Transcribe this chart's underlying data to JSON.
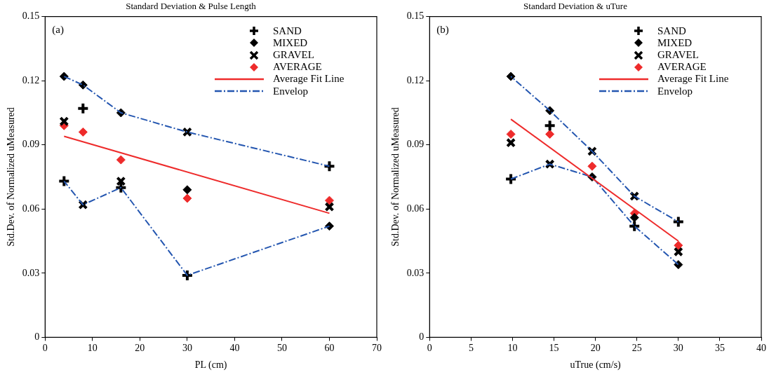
{
  "chart_data": [
    {
      "type": "scatter",
      "title": "Standard Deviation & Pulse Length",
      "xlabel": "PL (cm)",
      "ylabel": "Std.Dev. of Normalized uMeasured",
      "annotations": [
        "(a)"
      ],
      "xlim": [
        0,
        70
      ],
      "xticks": [
        0,
        10,
        20,
        30,
        40,
        50,
        60,
        70
      ],
      "ylim": [
        0,
        0.15
      ],
      "yticks": [
        0,
        0.03,
        0.06,
        0.09,
        0.12,
        0.15
      ],
      "grid": false,
      "legend": "top right",
      "series": [
        {
          "name": "SAND",
          "color": "#000000",
          "marker": "plus",
          "x": [
            4,
            8,
            16,
            30,
            60
          ],
          "values": [
            0.073,
            0.107,
            0.07,
            0.029,
            0.08
          ]
        },
        {
          "name": "MIXED",
          "color": "#000000",
          "marker": "diamond",
          "x": [
            4,
            8,
            16,
            30,
            60
          ],
          "values": [
            0.122,
            0.118,
            0.105,
            0.069,
            0.052
          ]
        },
        {
          "name": "GRAVEL",
          "color": "#000000",
          "marker": "cross",
          "x": [
            4,
            8,
            16,
            30,
            60
          ],
          "values": [
            0.101,
            0.062,
            0.073,
            0.096,
            0.061
          ]
        },
        {
          "name": "AVERAGE",
          "color": "#ee2b2b",
          "marker": "diamond",
          "x": [
            4,
            8,
            16,
            30,
            60
          ],
          "values": [
            0.099,
            0.096,
            0.083,
            0.065,
            0.064
          ]
        },
        {
          "name": "Average Fit Line",
          "type": "line",
          "color": "#ee2b2b",
          "marker": "none",
          "line_style": "solid",
          "x": [
            4,
            60
          ],
          "values": [
            0.094,
            0.058
          ]
        },
        {
          "name": "Envelop",
          "type": "line",
          "color": "#2456b0",
          "marker": "none",
          "line_style": "dashed",
          "x": [
            4,
            8,
            16,
            30,
            60
          ],
          "values": [
            0.122,
            0.118,
            0.105,
            0.096,
            0.08
          ]
        },
        {
          "type": "line",
          "color": "#2456b0",
          "marker": "none",
          "line_style": "dashed",
          "x": [
            4,
            8,
            16,
            30,
            60
          ],
          "values": [
            0.073,
            0.062,
            0.07,
            0.029,
            0.052
          ]
        }
      ]
    },
    {
      "type": "scatter",
      "title": "Standard Deviation & uTure",
      "xlabel": "uTrue (cm/s)",
      "ylabel": "Std.Dev. of Normalized uMeasured",
      "annotations": [
        "(b)"
      ],
      "xlim": [
        0,
        40
      ],
      "xticks": [
        0,
        5,
        10,
        15,
        20,
        25,
        30,
        35,
        40
      ],
      "ylim": [
        0,
        0.15
      ],
      "yticks": [
        0,
        0.03,
        0.06,
        0.09,
        0.12,
        0.15
      ],
      "grid": false,
      "legend": "top right",
      "series": [
        {
          "name": "SAND",
          "color": "#000000",
          "marker": "plus",
          "x": [
            9.8,
            14.5,
            19.6,
            24.7,
            30
          ],
          "values": [
            0.074,
            0.099,
            null,
            0.052,
            0.054
          ]
        },
        {
          "name": "MIXED",
          "color": "#000000",
          "marker": "diamond",
          "x": [
            9.8,
            14.5,
            19.6,
            24.7,
            30
          ],
          "values": [
            0.122,
            0.106,
            0.075,
            0.056,
            0.034
          ]
        },
        {
          "name": "GRAVEL",
          "color": "#000000",
          "marker": "cross",
          "x": [
            9.8,
            14.5,
            19.6,
            24.7,
            30
          ],
          "values": [
            0.091,
            0.081,
            0.087,
            0.066,
            0.04
          ]
        },
        {
          "name": "AVERAGE",
          "color": "#ee2b2b",
          "marker": "diamond",
          "x": [
            9.8,
            14.5,
            19.6,
            24.7,
            30
          ],
          "values": [
            0.095,
            0.095,
            0.08,
            0.058,
            0.043
          ]
        },
        {
          "name": "Average Fit Line",
          "type": "line",
          "color": "#ee2b2b",
          "marker": "none",
          "line_style": "solid",
          "x": [
            9.8,
            30
          ],
          "values": [
            0.102,
            0.045
          ]
        },
        {
          "name": "Envelop",
          "type": "line",
          "color": "#2456b0",
          "marker": "none",
          "line_style": "dashed",
          "x": [
            9.8,
            14.5,
            19.6,
            24.7,
            30
          ],
          "values": [
            0.122,
            0.106,
            0.087,
            0.066,
            0.054
          ]
        },
        {
          "type": "line",
          "color": "#2456b0",
          "marker": "none",
          "line_style": "dashed",
          "x": [
            9.8,
            14.5,
            19.6,
            24.7,
            30
          ],
          "values": [
            0.074,
            0.081,
            0.075,
            0.052,
            0.034
          ]
        }
      ]
    }
  ]
}
